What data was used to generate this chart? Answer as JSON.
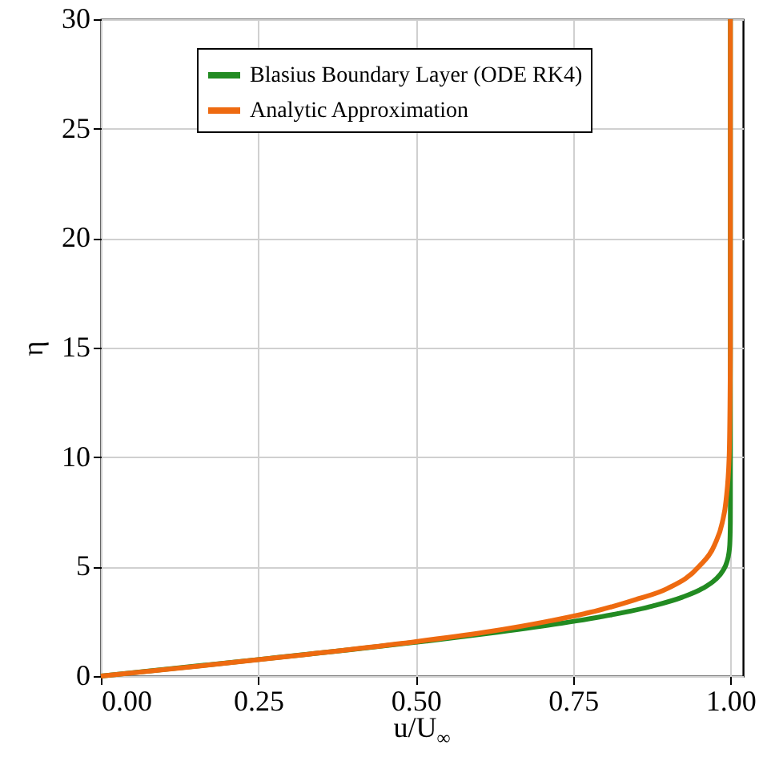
{
  "chart_data": {
    "type": "line",
    "xlabel": "u/U$_{∞}$",
    "ylabel": "η",
    "series": [
      {
        "name": "Blasius Boundary Layer (ODE RK4)",
        "color": "#228b22",
        "x": [
          0,
          0.1328,
          0.2647,
          0.3938,
          0.5168,
          0.6298,
          0.729,
          0.8115,
          0.8761,
          0.9233,
          0.9555,
          0.9759,
          0.9878,
          0.9943,
          0.9975,
          0.999,
          0.9999,
          1,
          1
        ],
        "values": [
          0,
          0.4,
          0.8,
          1.2,
          1.6,
          2,
          2.4,
          2.8,
          3.2,
          3.6,
          4,
          4.4,
          4.8,
          5.2,
          5.6,
          6,
          7,
          8,
          30
        ]
      },
      {
        "name": "Analytic Approximation",
        "color": "#ee6a10",
        "x": [
          0,
          0.17,
          0.33,
          0.48,
          0.61,
          0.71,
          0.79,
          0.85,
          0.9,
          0.95,
          0.975,
          0.987,
          0.993,
          0.998,
          1,
          1
        ],
        "values": [
          0,
          0.5,
          1,
          1.5,
          2,
          2.5,
          3,
          3.5,
          4,
          5,
          6,
          7,
          8,
          10,
          15,
          30
        ]
      }
    ],
    "xlim": [
      0,
      1.02
    ],
    "ylim": [
      0,
      30
    ],
    "xticks": [
      {
        "value": 0,
        "label": "0.00"
      },
      {
        "value": 0.25,
        "label": "0.25"
      },
      {
        "value": 0.5,
        "label": "0.50"
      },
      {
        "value": 0.75,
        "label": "0.75"
      },
      {
        "value": 1,
        "label": "1.00"
      }
    ],
    "yticks": [
      0,
      5,
      10,
      15,
      20,
      25,
      30
    ],
    "grid": true,
    "legend": "top",
    "line_style": "solid",
    "marker": "none"
  }
}
